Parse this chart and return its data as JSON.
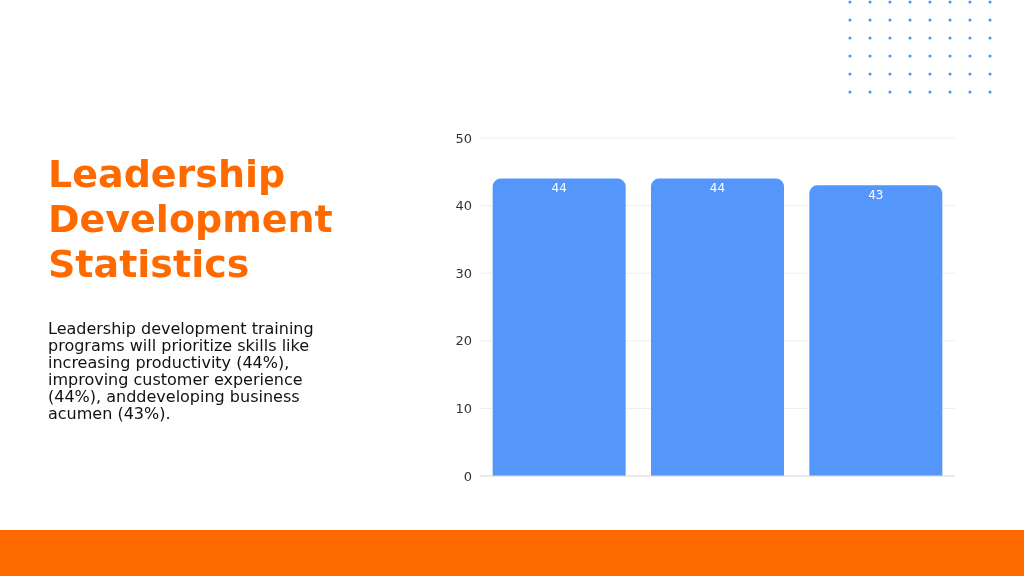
{
  "chart_data": {
    "type": "bar",
    "title": "Leadership Development Statistics",
    "annotations": [
      "Leadership development training programs will prioritize skills like increasing productivity (44%), improving customer experience (44%), anddeveloping business acumen (43%)."
    ],
    "categories": [
      null,
      null,
      null
    ],
    "values": [
      44,
      44,
      43
    ],
    "color": "#5596fb",
    "ylim": [
      0,
      50
    ],
    "yticks": [
      0,
      10,
      20,
      30,
      40,
      50
    ],
    "grid": "y",
    "data_labels": true,
    "tick_labels": "y"
  }
}
